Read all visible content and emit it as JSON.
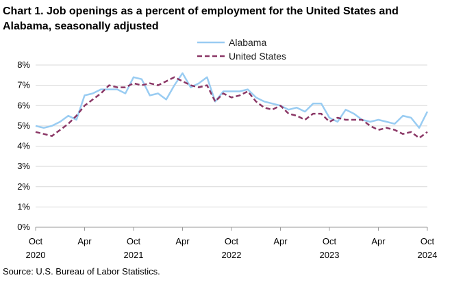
{
  "chart_data": {
    "type": "line",
    "title": "Chart 1. Job openings as a percent of employment for the United States and Alabama, seasonally adjusted",
    "source": "Source: U.S. Bureau of Labor Statistics.",
    "xlabel": "",
    "ylabel": "",
    "ylim": [
      0,
      8
    ],
    "yticks": [
      "0%",
      "1%",
      "2%",
      "3%",
      "4%",
      "5%",
      "6%",
      "7%",
      "8%"
    ],
    "xticks": [
      {
        "month": "Oct",
        "year": "2020"
      },
      {
        "month": "Apr",
        "year": ""
      },
      {
        "month": "Oct",
        "year": "2021"
      },
      {
        "month": "Apr",
        "year": ""
      },
      {
        "month": "Oct",
        "year": "2022"
      },
      {
        "month": "Apr",
        "year": ""
      },
      {
        "month": "Oct",
        "year": "2023"
      },
      {
        "month": "Apr",
        "year": ""
      },
      {
        "month": "Oct",
        "year": "2024"
      }
    ],
    "x_range": [
      "2020-10",
      "2024-10"
    ],
    "grid": "horizontal",
    "legend_position": "top-right",
    "series": [
      {
        "name": "Alabama",
        "color": "#99ccf2",
        "style": "solid",
        "values": [
          5.0,
          4.9,
          5.0,
          5.2,
          5.5,
          5.3,
          6.5,
          6.6,
          6.8,
          6.8,
          6.8,
          6.6,
          7.4,
          7.3,
          6.5,
          6.6,
          6.3,
          7.0,
          7.6,
          6.9,
          7.1,
          7.4,
          6.2,
          6.7,
          6.7,
          6.7,
          6.8,
          6.4,
          6.2,
          6.1,
          6.0,
          5.8,
          5.9,
          5.7,
          6.1,
          6.1,
          5.4,
          5.2,
          5.8,
          5.6,
          5.3,
          5.2,
          5.3,
          5.2,
          5.1,
          5.5,
          5.4,
          4.9,
          5.7
        ]
      },
      {
        "name": "United States",
        "color": "#8b3766",
        "style": "dashed",
        "values": [
          4.7,
          4.6,
          4.5,
          4.8,
          5.1,
          5.5,
          6.0,
          6.3,
          6.6,
          7.0,
          6.9,
          6.9,
          7.1,
          7.0,
          7.1,
          7.0,
          7.2,
          7.4,
          7.2,
          7.0,
          6.9,
          7.0,
          6.2,
          6.6,
          6.4,
          6.5,
          6.7,
          6.2,
          5.9,
          5.8,
          6.0,
          5.6,
          5.5,
          5.3,
          5.6,
          5.6,
          5.2,
          5.4,
          5.3,
          5.3,
          5.3,
          5.0,
          4.8,
          4.9,
          4.8,
          4.6,
          4.7,
          4.4,
          4.7
        ]
      }
    ]
  }
}
